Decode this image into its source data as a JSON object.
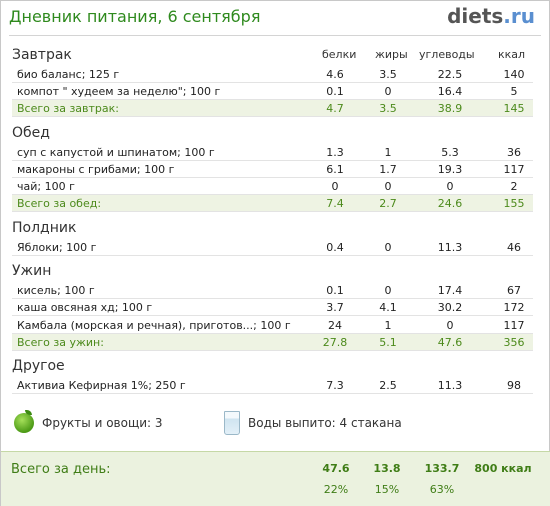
{
  "header": {
    "title": "Дневник питания, 6 сентября",
    "logo_main": "diets",
    "logo_tld": ".ru"
  },
  "columns": {
    "protein": "белки",
    "fat": "жиры",
    "carbs": "углеводы",
    "kcal": "ккал"
  },
  "sections": [
    {
      "title": "Завтрак",
      "rows": [
        {
          "name": "био баланс; 125 г",
          "protein": "4.6",
          "fat": "3.5",
          "carbs": "22.5",
          "kcal": "140"
        },
        {
          "name": "компот \" худеем за неделю\"; 100 г",
          "protein": "0.1",
          "fat": "0",
          "carbs": "16.4",
          "kcal": "5"
        }
      ],
      "total": {
        "name": "Всего за завтрак:",
        "protein": "4.7",
        "fat": "3.5",
        "carbs": "38.9",
        "kcal": "145"
      }
    },
    {
      "title": "Обед",
      "rows": [
        {
          "name": "суп с капустой и шпинатом; 100 г",
          "protein": "1.3",
          "fat": "1",
          "carbs": "5.3",
          "kcal": "36"
        },
        {
          "name": "макароны с грибами; 100 г",
          "protein": "6.1",
          "fat": "1.7",
          "carbs": "19.3",
          "kcal": "117"
        },
        {
          "name": "чай; 100 г",
          "protein": "0",
          "fat": "0",
          "carbs": "0",
          "kcal": "2"
        }
      ],
      "total": {
        "name": "Всего за обед:",
        "protein": "7.4",
        "fat": "2.7",
        "carbs": "24.6",
        "kcal": "155"
      }
    },
    {
      "title": "Полдник",
      "rows": [
        {
          "name": "Яблоки; 100 г",
          "protein": "0.4",
          "fat": "0",
          "carbs": "11.3",
          "kcal": "46"
        }
      ]
    },
    {
      "title": "Ужин",
      "rows": [
        {
          "name": "кисель; 100 г",
          "protein": "0.1",
          "fat": "0",
          "carbs": "17.4",
          "kcal": "67"
        },
        {
          "name": "каша овсяная хд; 100 г",
          "protein": "3.7",
          "fat": "4.1",
          "carbs": "30.2",
          "kcal": "172"
        },
        {
          "name": "Камбала (морская и речная), приготов...; 100 г",
          "protein": "24",
          "fat": "1",
          "carbs": "0",
          "kcal": "117"
        }
      ],
      "total": {
        "name": "Всего за ужин:",
        "protein": "27.8",
        "fat": "5.1",
        "carbs": "47.6",
        "kcal": "356"
      }
    },
    {
      "title": "Другое",
      "rows": [
        {
          "name": "Активиа Кефирная 1%; 250 г",
          "protein": "7.3",
          "fat": "2.5",
          "carbs": "11.3",
          "kcal": "98"
        }
      ]
    }
  ],
  "extras": {
    "fruits": "Фрукты и овощи: 3",
    "water": "Воды выпито: 4 стакана"
  },
  "day_total": {
    "label": "Всего за день:",
    "protein": "47.6",
    "fat": "13.8",
    "carbs": "133.7",
    "kcal": "800 ккал",
    "protein_pct": "22%",
    "fat_pct": "15%",
    "carbs_pct": "63%"
  },
  "colors": {
    "accent_green": "#2f8a1e",
    "total_bg": "#eef3e3",
    "logo_blue": "#5a8fd0"
  }
}
